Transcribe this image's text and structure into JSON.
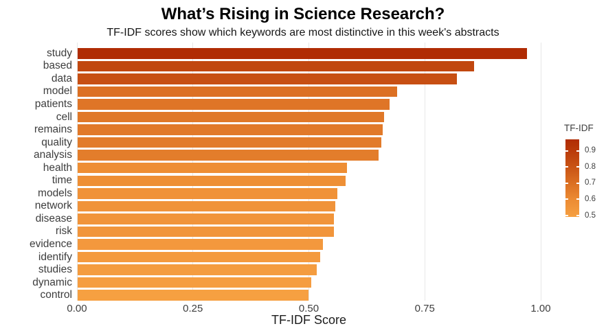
{
  "chart_data": {
    "type": "bar",
    "orientation": "horizontal",
    "title": "What’s Rising in Science Research?",
    "subtitle": "TF-IDF scores show which keywords are most distinctive in this week's abstracts",
    "xlabel": "TF-IDF Score",
    "ylabel": "",
    "xlim": [
      0,
      1
    ],
    "grid": "vertical-only, light gray",
    "categories": [
      "study",
      "based",
      "data",
      "model",
      "patients",
      "cell",
      "remains",
      "quality",
      "analysis",
      "health",
      "time",
      "models",
      "network",
      "disease",
      "risk",
      "evidence",
      "identify",
      "studies",
      "dynamic",
      "control"
    ],
    "values": [
      0.97,
      0.855,
      0.818,
      0.69,
      0.673,
      0.661,
      0.659,
      0.655,
      0.649,
      0.581,
      0.579,
      0.56,
      0.557,
      0.554,
      0.553,
      0.53,
      0.524,
      0.517,
      0.505,
      0.499
    ],
    "bar_colors": [
      "#b02c04",
      "#c1470f",
      "#c74f13",
      "#dc7023",
      "#df7527",
      "#e07828",
      "#e17929",
      "#e27b2a",
      "#e37d2b",
      "#ee8e34",
      "#ee8f35",
      "#f09238",
      "#f0933a",
      "#f1943a",
      "#f1953b",
      "#f3983d",
      "#f49a3e",
      "#f49c3f",
      "#f59d40",
      "#f6a041"
    ],
    "x_ticks": [
      {
        "value": 0.0,
        "label": "0.00"
      },
      {
        "value": 0.25,
        "label": "0.25"
      },
      {
        "value": 0.5,
        "label": "0.50"
      },
      {
        "value": 0.75,
        "label": "0.75"
      },
      {
        "value": 1.0,
        "label": "1.00"
      }
    ],
    "legend": {
      "title": "TF-IDF",
      "position": "right",
      "domain": [
        0.492,
        0.97
      ],
      "ticks": [
        {
          "value": 0.9,
          "label": "0.9"
        },
        {
          "value": 0.8,
          "label": "0.8"
        },
        {
          "value": 0.7,
          "label": "0.7"
        },
        {
          "value": 0.6,
          "label": "0.6"
        },
        {
          "value": 0.5,
          "label": "0.5"
        }
      ],
      "gradient": [
        {
          "value": 0.97,
          "color": "#b02c04"
        },
        {
          "value": 0.9,
          "color": "#ba3a09"
        },
        {
          "value": 0.8,
          "color": "#c95415"
        },
        {
          "value": 0.7,
          "color": "#db6f22"
        },
        {
          "value": 0.6,
          "color": "#ec8b33"
        },
        {
          "value": 0.5,
          "color": "#f59e40"
        },
        {
          "value": 0.492,
          "color": "#f6a041"
        }
      ]
    }
  }
}
